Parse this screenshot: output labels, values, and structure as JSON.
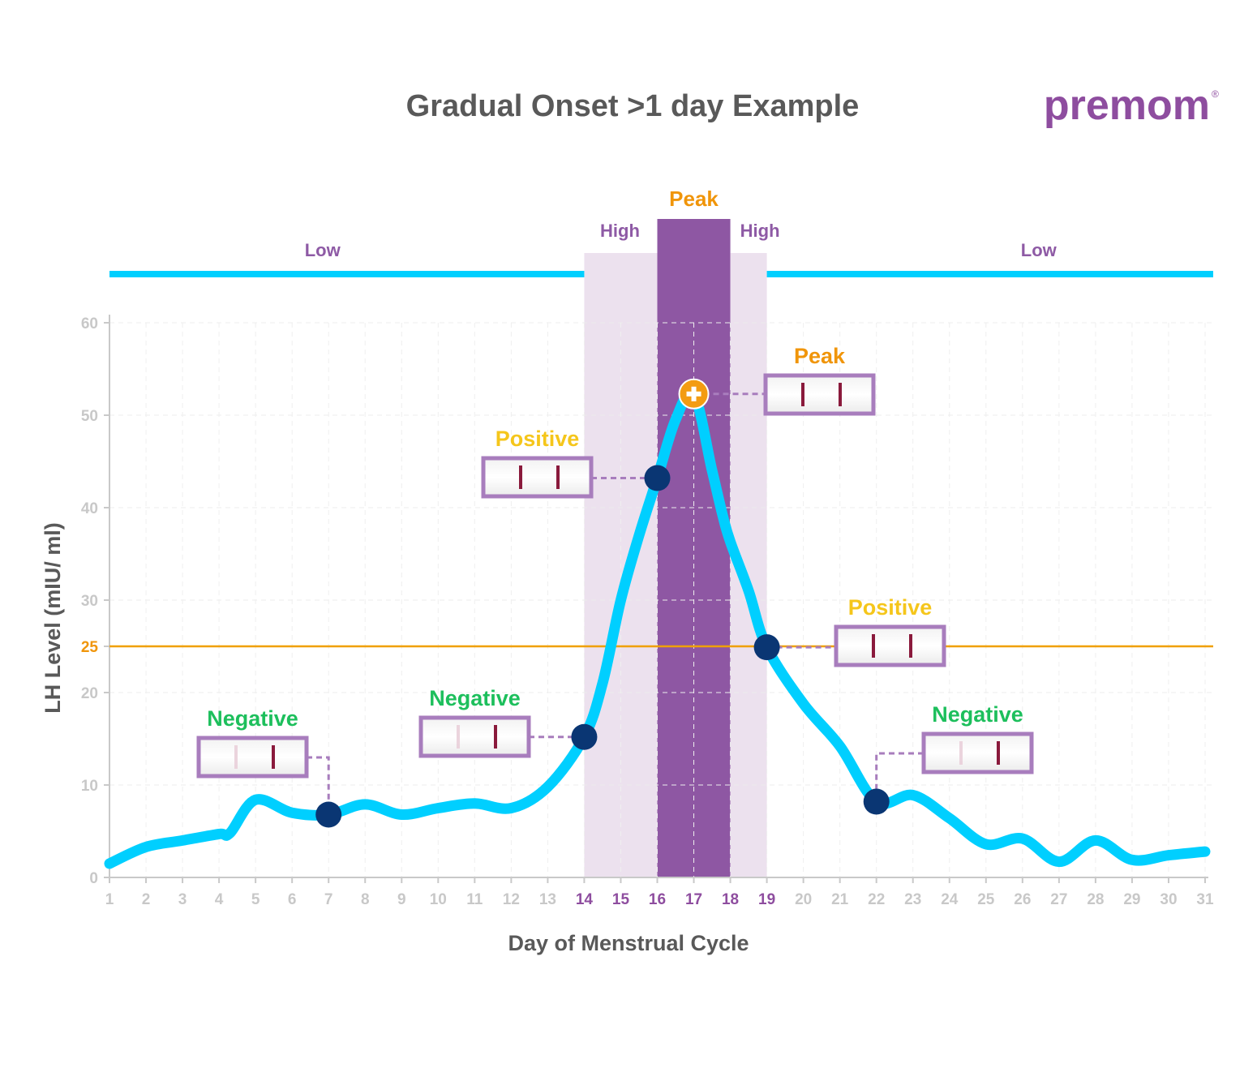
{
  "header": {
    "title": "Gradual Onset >1 day Example",
    "logo_text": "premom",
    "logo_mark": "®"
  },
  "colors": {
    "curve": "#00cfff",
    "phase_bar": "#00cfff",
    "high_band": "#ece1ee",
    "peak_band": "#8e57a3",
    "threshold": "#f0a000",
    "point": "#0a3673",
    "peak_point": "#f39c12",
    "strip_border": "#a87dbd",
    "negative": "#1dbf5c",
    "positive": "#f5c61b",
    "peak": "#f0950a"
  },
  "phases": [
    {
      "label": "Low",
      "from": 1,
      "to": 14
    },
    {
      "label": "High",
      "from": 14,
      "to": 16
    },
    {
      "label": "Peak",
      "from": 16,
      "to": 18
    },
    {
      "label": "High",
      "from": 18,
      "to": 19
    },
    {
      "label": "Low",
      "from": 19,
      "to": 31
    }
  ],
  "chart_data": {
    "type": "line",
    "xlabel": "Day of Menstrual Cycle",
    "ylabel": "LH Level (mIU/ ml)",
    "xlim": [
      1,
      31
    ],
    "ylim": [
      0,
      60
    ],
    "x_ticks": [
      "1",
      "2",
      "3",
      "4",
      "5",
      "6",
      "7",
      "8",
      "9",
      "10",
      "11",
      "12",
      "13",
      "14",
      "15",
      "16",
      "17",
      "18",
      "19",
      "20",
      "21",
      "22",
      "23",
      "24",
      "25",
      "26",
      "27",
      "28",
      "29",
      "30",
      "31"
    ],
    "highlighted_x_ticks": [
      "14",
      "15",
      "16",
      "17",
      "18",
      "19"
    ],
    "y_ticks": [
      "0",
      "10",
      "20",
      "25",
      "30",
      "40",
      "50",
      "60"
    ],
    "threshold": {
      "value": 25,
      "label": "25"
    },
    "series": [
      {
        "x": [
          1,
          2,
          3,
          4,
          4.3,
          5,
          6,
          7,
          8,
          9,
          10,
          11,
          12,
          13,
          14,
          14.5,
          15,
          15.5,
          16,
          16.5,
          17,
          17.5,
          17.8,
          18,
          18.5,
          19,
          20,
          21,
          22,
          23,
          24,
          25,
          26,
          27,
          28,
          29,
          30,
          31
        ],
        "values": [
          1.5,
          3.3,
          4.0,
          4.7,
          4.8,
          8.4,
          7.0,
          6.8,
          7.9,
          6.8,
          7.5,
          8.0,
          7.5,
          9.8,
          15.2,
          21,
          30,
          37,
          43.2,
          49.5,
          52.3,
          44,
          39,
          36.3,
          31,
          24.9,
          18.8,
          14.2,
          8.2,
          8.9,
          6.4,
          3.6,
          4.2,
          1.7,
          4.0,
          1.9,
          2.4,
          2.8
        ]
      }
    ],
    "annotations": [
      {
        "day": 7,
        "lh": 6.8,
        "label": "Negative",
        "result": "negative"
      },
      {
        "day": 14,
        "lh": 15.2,
        "label": "Negative",
        "result": "negative"
      },
      {
        "day": 16,
        "lh": 43.2,
        "label": "Positive",
        "result": "positive"
      },
      {
        "day": 17,
        "lh": 52.3,
        "label": "Peak",
        "result": "peak"
      },
      {
        "day": 19,
        "lh": 24.9,
        "label": "Positive",
        "result": "positive"
      },
      {
        "day": 22,
        "lh": 8.2,
        "label": "Negative",
        "result": "negative"
      }
    ]
  }
}
